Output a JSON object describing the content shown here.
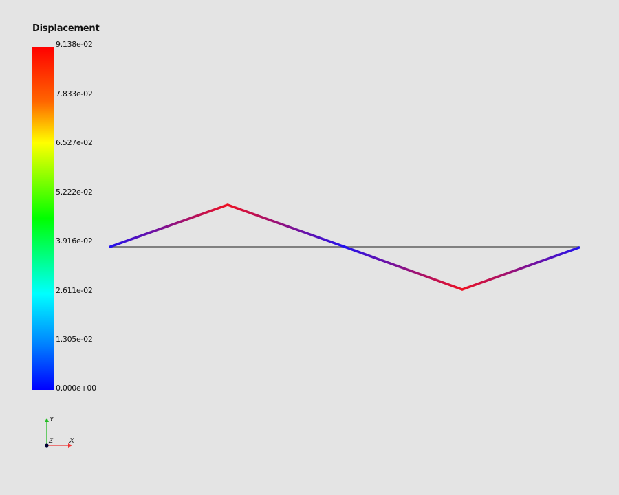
{
  "colorbar": {
    "title": "Displacement",
    "labels": [
      "9.138e-02",
      "7.833e-02",
      "6.527e-02",
      "5.222e-02",
      "3.916e-02",
      "2.611e-02",
      "1.305e-02",
      "0.000e+00"
    ],
    "stops": [
      "#ff0000",
      "#ffa500",
      "#ffff00",
      "#00ff00",
      "#00ffff",
      "#0000ff"
    ]
  },
  "axes": {
    "y_label": "Y",
    "x_label": "X",
    "z_label": "Z",
    "y_color": "#22bb22",
    "x_color": "#ee3333",
    "z_color": "#000033"
  },
  "colors": {
    "background": "#e4e4e4",
    "undeformed_line": "#808080",
    "high": "#ee1122",
    "low": "#2211ee"
  }
}
